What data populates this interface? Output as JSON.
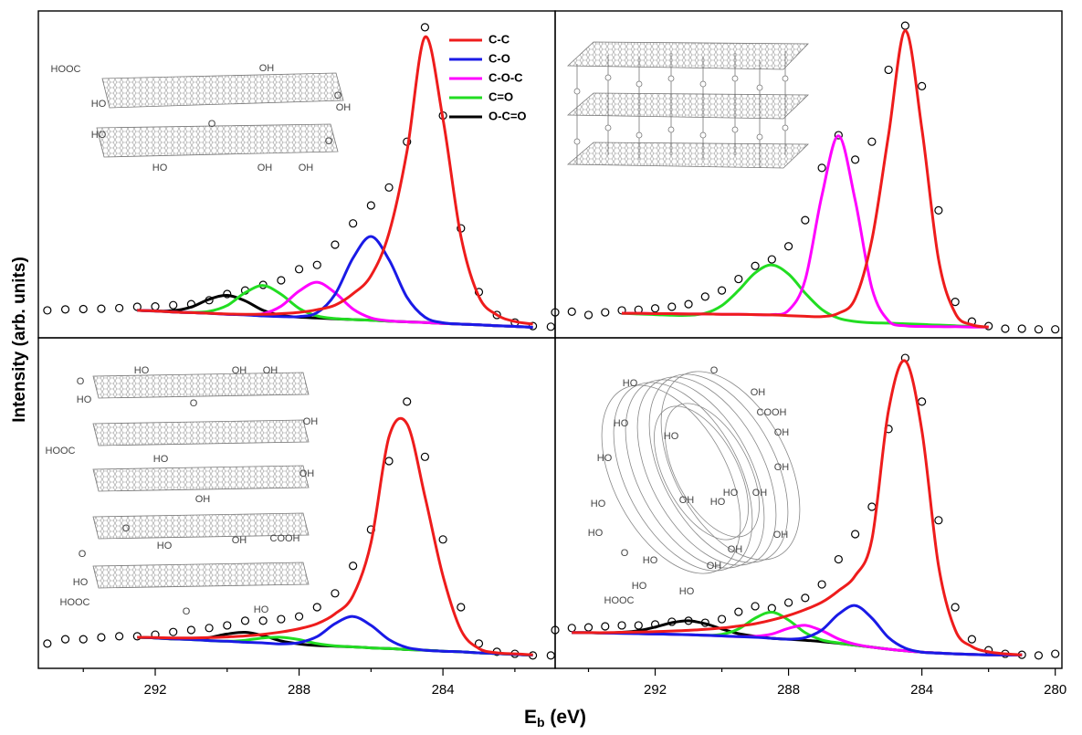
{
  "ylabel": "Intensity (arb. units)",
  "xlabel": [
    "E",
    "b",
    " (eV)"
  ],
  "chart_data": [
    {
      "type": "line",
      "xlim": [
        295.25,
        280.88
      ],
      "ylim": [
        0,
        100
      ],
      "x": [
        295,
        294.5,
        294,
        293.5,
        293,
        292.5,
        292,
        291.5,
        291,
        290.5,
        290,
        289.5,
        289,
        288.5,
        288,
        287.5,
        287,
        286.5,
        286,
        285.5,
        285,
        284.5,
        284,
        283.5,
        283,
        282.5,
        282,
        281.5,
        281
      ],
      "measured": {
        "color": "#000000",
        "values": [
          8.4,
          8.7,
          8.8,
          8.9,
          9.1,
          9.5,
          9.6,
          10.0,
          10.3,
          11.5,
          13.4,
          14.5,
          16.2,
          17.6,
          21.0,
          22.3,
          28.5,
          35.0,
          40.5,
          46.0,
          60.0,
          95.0,
          68.0,
          33.5,
          14.0,
          7.0,
          4.7,
          3.6,
          3.4
        ]
      },
      "series": [
        {
          "name": "C-C",
          "color": "#ee1c1c",
          "values": [
            null,
            null,
            null,
            null,
            null,
            8.4,
            8.2,
            7.9,
            7.7,
            7.5,
            7.3,
            7.2,
            7.2,
            7.4,
            7.8,
            8.6,
            10.0,
            13.5,
            19.0,
            32.0,
            57.0,
            92.0,
            67.0,
            31.0,
            12.6,
            7.0,
            5.0,
            4.2,
            null
          ]
        },
        {
          "name": "C-O",
          "color": "#1a1ae6",
          "values": [
            null,
            null,
            null,
            null,
            null,
            8.4,
            8.2,
            7.9,
            7.7,
            7.5,
            7.2,
            7.0,
            6.7,
            6.5,
            6.5,
            7.7,
            13.3,
            24.4,
            31.0,
            23.9,
            12.4,
            6.3,
            4.6,
            4.2,
            4.0,
            3.7,
            3.5,
            3.2,
            null
          ]
        },
        {
          "name": "C-O-C",
          "color": "#ff00ff",
          "values": [
            null,
            null,
            null,
            null,
            null,
            8.4,
            8.2,
            7.9,
            7.7,
            7.5,
            7.2,
            7.1,
            7.4,
            9.7,
            14.3,
            17.0,
            13.8,
            8.8,
            6.1,
            5.2,
            4.9,
            4.7,
            4.4,
            4.2,
            4.0,
            3.7,
            3.5,
            3.2,
            null
          ]
        },
        {
          "name": "C=O",
          "color": "#22dd22",
          "values": [
            null,
            null,
            null,
            null,
            null,
            8.4,
            8.2,
            7.9,
            7.8,
            8.1,
            9.9,
            13.8,
            16.0,
            13.3,
            9.0,
            6.7,
            5.9,
            5.6,
            5.4,
            5.1,
            4.9,
            4.7,
            4.4,
            4.2,
            4.0,
            3.7,
            3.5,
            3.2,
            null
          ]
        },
        {
          "name": "O-C=O",
          "color": "#000000",
          "values": [
            null,
            null,
            null,
            null,
            null,
            8.4,
            8.2,
            8.3,
            9.4,
            11.8,
            13.0,
            11.3,
            8.4,
            6.9,
            6.3,
            6.1,
            5.8,
            5.6,
            5.4,
            5.1,
            4.9,
            4.7,
            4.4,
            4.2,
            4.0,
            3.7,
            3.5,
            3.2,
            null
          ]
        }
      ],
      "annotations": [
        "HOOC",
        "OH",
        "O",
        "OH",
        "HO",
        "O",
        "HO",
        "O",
        "HO",
        "OH",
        "OH"
      ]
    },
    {
      "type": "line",
      "xlim": [
        295,
        279.8
      ],
      "ylim": [
        0,
        100
      ],
      "x": [
        295,
        294.5,
        294,
        293.5,
        293,
        292.5,
        292,
        291.5,
        291,
        290.5,
        290,
        289.5,
        289,
        288.5,
        288,
        287.5,
        287,
        286.5,
        286,
        285.5,
        285,
        284.5,
        284,
        283.5,
        283,
        282.5,
        282,
        281.5,
        281,
        280.5,
        280
      ],
      "measured": {
        "color": "#000000",
        "values": [
          7.8,
          8.0,
          7.0,
          7.8,
          8.4,
          8.6,
          9.0,
          9.5,
          10.3,
          12.6,
          14.5,
          18.0,
          22.0,
          24.0,
          28.0,
          36.0,
          52.0,
          62.0,
          54.5,
          60.0,
          82.0,
          95.5,
          77.0,
          39.0,
          11.0,
          5.0,
          3.6,
          2.8,
          2.8,
          2.6,
          2.6
        ]
      },
      "series": [
        {
          "color": "#ee1c1c",
          "values": [
            null,
            null,
            null,
            null,
            7.5,
            7.5,
            7.4,
            7.4,
            7.3,
            7.3,
            7.2,
            7.2,
            7.1,
            7.0,
            6.8,
            6.6,
            6.5,
            7.5,
            12.0,
            30.0,
            62.0,
            94.0,
            64.0,
            24.0,
            7.5,
            4.0,
            3.3,
            null,
            null,
            null,
            null
          ]
        },
        {
          "color": "#ff00ff",
          "values": [
            null,
            null,
            null,
            null,
            7.5,
            7.5,
            7.4,
            7.4,
            7.3,
            7.3,
            7.2,
            7.2,
            7.1,
            7.1,
            8.4,
            17.7,
            43.5,
            61.8,
            42.1,
            15.2,
            5.2,
            3.7,
            3.5,
            3.4,
            3.4,
            3.3,
            3.3,
            null,
            null,
            null,
            null
          ]
        },
        {
          "color": "#22dd22",
          "values": [
            null,
            null,
            null,
            null,
            7.5,
            7.3,
            7.1,
            6.9,
            6.9,
            7.5,
            9.9,
            14.5,
            19.9,
            22.3,
            19.5,
            13.7,
            8.7,
            6.0,
            5.0,
            4.6,
            4.5,
            4.3,
            4.1,
            3.9,
            3.7,
            3.5,
            3.3,
            null,
            null,
            null,
            null
          ]
        }
      ]
    },
    {
      "type": "line",
      "xlim": [
        295.25,
        280.88
      ],
      "ylim": [
        0,
        100
      ],
      "xticks": [
        292,
        288,
        284
      ],
      "xminorticks": [
        294,
        290,
        286,
        282
      ],
      "x": [
        295,
        294.5,
        294,
        293.5,
        293,
        292.5,
        292,
        291.5,
        291,
        290.5,
        290,
        289.5,
        289,
        288.5,
        288,
        287.5,
        287,
        286.5,
        286,
        285.5,
        285,
        284.5,
        284,
        283.5,
        283,
        282.5,
        282,
        281.5,
        281
      ],
      "measured": {
        "color": "#000000",
        "values": [
          7.5,
          8.8,
          8.8,
          9.4,
          9.7,
          9.7,
          10.2,
          11.0,
          11.6,
          12.2,
          13.0,
          14.4,
          14.4,
          14.9,
          15.7,
          18.5,
          22.7,
          31.0,
          42.0,
          62.7,
          80.7,
          64.0,
          39.0,
          18.5,
          7.5,
          5.0,
          4.4,
          3.9,
          3.9
        ]
      },
      "series": [
        {
          "color": "#ee1c1c",
          "values": [
            null,
            null,
            null,
            null,
            null,
            9.4,
            9.3,
            9.2,
            9.2,
            9.3,
            9.5,
            9.8,
            10.3,
            11.0,
            12.0,
            13.5,
            16.5,
            22.0,
            38.0,
            70.0,
            74.0,
            52.0,
            28.0,
            11.6,
            6.0,
            4.7,
            4.4,
            4.1,
            null
          ]
        },
        {
          "color": "#1a1ae6",
          "values": [
            null,
            null,
            null,
            null,
            null,
            9.4,
            9.2,
            8.9,
            8.7,
            8.4,
            8.2,
            7.9,
            7.7,
            7.4,
            7.8,
            9.6,
            13.5,
            15.7,
            13.0,
            8.7,
            6.3,
            5.5,
            5.2,
            5.0,
            4.7,
            4.5,
            4.2,
            4.0,
            null
          ]
        },
        {
          "color": "#22dd22",
          "values": [
            null,
            null,
            null,
            null,
            null,
            9.4,
            9.2,
            8.9,
            8.7,
            8.4,
            8.2,
            8.5,
            9.2,
            9.4,
            8.7,
            7.5,
            6.8,
            6.5,
            6.2,
            6.0,
            5.7,
            5.5,
            5.2,
            5.0,
            4.7,
            4.5,
            4.2,
            4.0,
            null
          ]
        },
        {
          "color": "#000000",
          "values": [
            null,
            null,
            null,
            null,
            null,
            9.4,
            9.2,
            8.9,
            8.9,
            9.3,
            10.4,
            10.9,
            9.9,
            8.3,
            7.4,
            6.9,
            6.7,
            6.5,
            6.2,
            6.0,
            5.7,
            5.5,
            5.2,
            5.0,
            4.7,
            4.5,
            4.2,
            4.0,
            null
          ]
        }
      ],
      "annotations": [
        "HO",
        "OH",
        "OH",
        "O",
        "HO",
        "O",
        "OH",
        "HOOC",
        "HO",
        "OH",
        "O",
        "OH",
        "O",
        "OH",
        "COOH",
        "HO",
        "HO",
        "HOOC",
        "O",
        "HO"
      ]
    },
    {
      "type": "line",
      "xlim": [
        295,
        279.8
      ],
      "ylim": [
        0,
        100
      ],
      "xticks": [
        292,
        288,
        284,
        280
      ],
      "xminorticks": [
        294,
        290,
        286,
        282
      ],
      "x": [
        295,
        294.5,
        294,
        293.5,
        293,
        292.5,
        292,
        291.5,
        291,
        290.5,
        290,
        289.5,
        289,
        288.5,
        288,
        287.5,
        287,
        286.5,
        286,
        285.5,
        285,
        284.5,
        284,
        283.5,
        283,
        282.5,
        282,
        281.5,
        281,
        280.5,
        280
      ],
      "measured": {
        "color": "#000000",
        "values": [
          11.6,
          12.2,
          12.4,
          12.7,
          13.0,
          13.0,
          13.3,
          14.1,
          14.4,
          13.8,
          14.9,
          17.1,
          18.8,
          18.2,
          19.9,
          21.3,
          25.4,
          33.0,
          40.6,
          48.9,
          72.4,
          93.9,
          80.7,
          44.8,
          18.5,
          8.8,
          5.5,
          4.4,
          4.1,
          3.9,
          4.4
        ]
      },
      "series": [
        {
          "color": "#ee1c1c",
          "values": [
            null,
            10.8,
            10.8,
            10.8,
            10.9,
            11.0,
            11.1,
            11.3,
            11.5,
            11.8,
            12.2,
            12.8,
            13.5,
            14.6,
            16.0,
            17.8,
            20.0,
            23.5,
            28.0,
            39.0,
            78.0,
            93.0,
            72.0,
            31.0,
            11.6,
            6.6,
            5.0,
            4.4,
            4.1,
            null,
            null
          ]
        },
        {
          "color": "#1a1ae6",
          "values": [
            null,
            10.8,
            10.8,
            10.7,
            10.6,
            10.5,
            10.4,
            10.3,
            10.2,
            10.0,
            9.8,
            9.6,
            9.4,
            9.1,
            8.8,
            9.3,
            11.6,
            16.4,
            19.0,
            15.2,
            9.3,
            6.1,
            4.9,
            4.6,
            4.4,
            4.2,
            4.1,
            4.1,
            4.1,
            null,
            null
          ]
        },
        {
          "color": "#ff00ff",
          "values": [
            null,
            10.8,
            10.8,
            10.7,
            10.6,
            10.5,
            10.4,
            10.3,
            10.2,
            10.0,
            9.8,
            9.6,
            9.7,
            10.4,
            12.1,
            13.0,
            11.4,
            8.9,
            7.3,
            6.4,
            5.8,
            5.3,
            4.9,
            4.6,
            4.4,
            4.2,
            4.1,
            4.1,
            4.1,
            null,
            null
          ]
        },
        {
          "color": "#22dd22",
          "values": [
            null,
            10.8,
            10.8,
            10.7,
            10.6,
            10.5,
            10.4,
            10.3,
            10.2,
            10.0,
            10.3,
            11.9,
            15.2,
            17.0,
            14.6,
            10.8,
            8.6,
            7.7,
            7.0,
            6.4,
            5.8,
            5.3,
            4.9,
            4.6,
            4.4,
            4.2,
            4.1,
            4.1,
            4.1,
            null,
            null
          ]
        },
        {
          "color": "#000000",
          "values": [
            null,
            10.8,
            10.8,
            10.7,
            10.9,
            11.4,
            12.5,
            13.8,
            14.4,
            13.5,
            11.9,
            10.5,
            9.7,
            9.1,
            8.8,
            8.5,
            8.1,
            7.6,
            7.0,
            6.4,
            5.8,
            5.3,
            4.9,
            4.6,
            4.4,
            4.2,
            4.1,
            4.1,
            4.1,
            null,
            null
          ]
        }
      ],
      "annotations": [
        "HO",
        "O",
        "OH",
        "COOH",
        "HO",
        "OH",
        "HO",
        "HO",
        "OH",
        "HO",
        "OH",
        "HO",
        "HO",
        "OH",
        "HO",
        "OH",
        "OH",
        "HO",
        "O",
        "HO",
        "HOOC",
        "HO",
        "OH"
      ]
    }
  ]
}
